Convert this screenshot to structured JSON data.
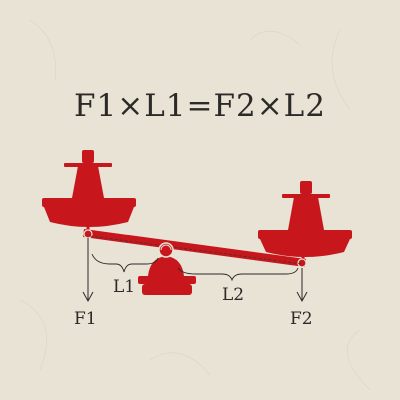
{
  "formula": "F1×L1=F2×L2",
  "labels": {
    "left_force": "F1",
    "right_force": "F2",
    "left_arm": "L1",
    "right_arm": "L2"
  },
  "colors": {
    "background": "#e9e3d6",
    "balance_red": "#c8161d",
    "text": "#2c2a28"
  }
}
